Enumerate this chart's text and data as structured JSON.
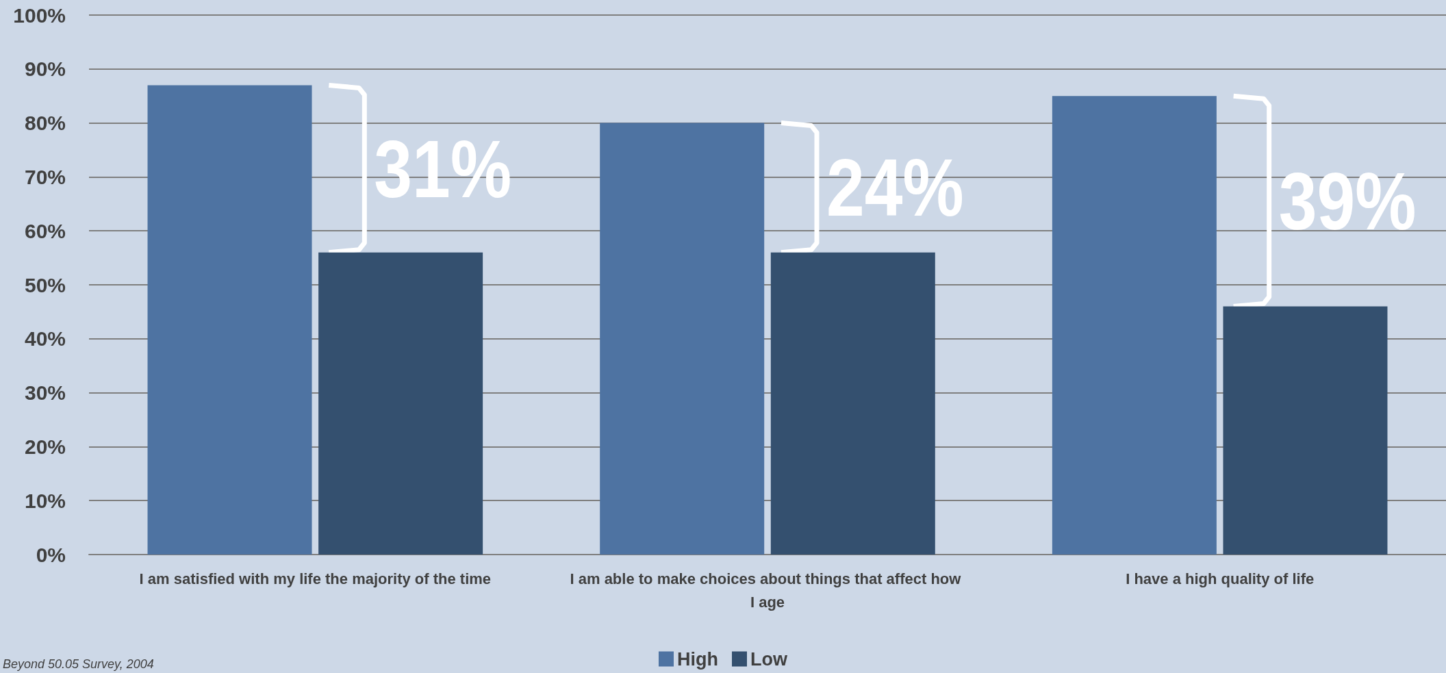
{
  "chart_data": {
    "type": "bar",
    "categories": [
      "I am satisfied with my life the majority of the time",
      "I am able to make choices about things that affect how I age",
      "I have a high quality of life"
    ],
    "series": [
      {
        "name": "High",
        "color": "#4e73a2",
        "values": [
          87,
          80,
          85
        ]
      },
      {
        "name": "Low",
        "color": "#34506f",
        "values": [
          56,
          56,
          46
        ]
      }
    ],
    "ylim": [
      0,
      100
    ],
    "yticks": [
      {
        "value": 0,
        "label": "0%"
      },
      {
        "value": 10,
        "label": "10%"
      },
      {
        "value": 20,
        "label": "20%"
      },
      {
        "value": 30,
        "label": "30%"
      },
      {
        "value": 40,
        "label": "40%"
      },
      {
        "value": 50,
        "label": "50%"
      },
      {
        "value": 60,
        "label": "60%"
      },
      {
        "value": 70,
        "label": "70%"
      },
      {
        "value": 80,
        "label": "80%"
      },
      {
        "value": 90,
        "label": "90%"
      },
      {
        "value": 100,
        "label": "100%"
      }
    ],
    "grid": "y",
    "legend": "bottom",
    "annotations": [
      {
        "text": "31%",
        "x": "I am satisfied with my life the majority of the time",
        "y": 71.5
      },
      {
        "text": "24%",
        "x": "I am able to make choices about things that affect how I age",
        "y": 68
      },
      {
        "text": "39%",
        "x": "I have a high quality of life",
        "y": 65.5
      },
      "Beyond 50.05 Survey, 2004"
    ]
  }
}
